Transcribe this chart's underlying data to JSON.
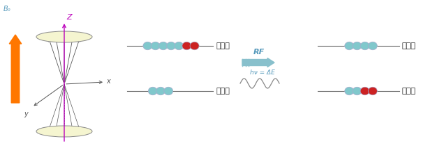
{
  "bg_color": "#ffffff",
  "arrow_color": "#FF7700",
  "teal_color": "#80C8CC",
  "red_color": "#CC2222",
  "cone_fill": "#F5F5D0",
  "cone_edge": "#888888",
  "rf_arrow_color": "#88C0CC",
  "rf_text_color": "#5599BB",
  "wave_color": "#888888",
  "axis_color": "#BB00BB",
  "line_color": "#555555",
  "label_low": "低能级",
  "label_high": "高能级",
  "label_rf": "RF",
  "label_eq": "hν = ΔE",
  "label_b0": "B₀",
  "label_z": "Z",
  "label_x": "x",
  "label_y": "y",
  "figsize": [
    6.23,
    2.36
  ],
  "dpi": 100
}
